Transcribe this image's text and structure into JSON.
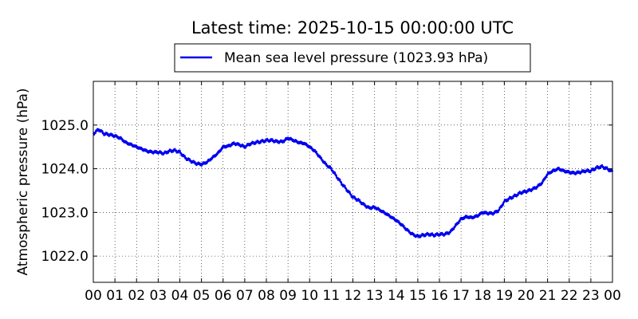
{
  "chart_data": {
    "type": "line",
    "title": "Latest time: 2025-10-15 00:00:00 UTC",
    "xlabel": "",
    "ylabel": "Atmospheric pressure (hPa)",
    "xlim": [
      0,
      24
    ],
    "ylim": [
      1021.4,
      1026.0
    ],
    "x_ticks": [
      0,
      1,
      2,
      3,
      4,
      5,
      6,
      7,
      8,
      9,
      10,
      11,
      12,
      13,
      14,
      15,
      16,
      17,
      18,
      19,
      20,
      21,
      22,
      23,
      24
    ],
    "x_tick_labels": [
      "00",
      "01",
      "02",
      "03",
      "04",
      "05",
      "06",
      "07",
      "08",
      "09",
      "10",
      "11",
      "12",
      "13",
      "14",
      "15",
      "16",
      "17",
      "18",
      "19",
      "20",
      "21",
      "22",
      "23",
      "00"
    ],
    "y_ticks": [
      1022.0,
      1023.0,
      1024.0,
      1025.0
    ],
    "y_tick_labels": [
      "1022.0",
      "1023.0",
      "1024.0",
      "1025.0"
    ],
    "grid": true,
    "legend_position": "top-center",
    "series": [
      {
        "name": "Mean sea level pressure (1023.93 hPa)",
        "color": "#0000ee",
        "x": [
          0,
          0.25,
          0.5,
          0.75,
          1,
          1.25,
          1.5,
          1.75,
          2,
          2.25,
          2.5,
          2.75,
          3,
          3.25,
          3.5,
          3.75,
          4,
          4.25,
          4.5,
          4.75,
          5,
          5.25,
          5.5,
          5.75,
          6,
          6.25,
          6.5,
          6.75,
          7,
          7.25,
          7.5,
          7.75,
          8,
          8.25,
          8.5,
          8.75,
          9,
          9.25,
          9.5,
          9.75,
          10,
          10.25,
          10.5,
          10.75,
          11,
          11.25,
          11.5,
          11.75,
          12,
          12.25,
          12.5,
          12.75,
          13,
          13.25,
          13.5,
          13.75,
          14,
          14.25,
          14.5,
          14.75,
          15,
          15.25,
          15.5,
          15.75,
          16,
          16.25,
          16.5,
          16.75,
          17,
          17.25,
          17.5,
          17.75,
          18,
          18.25,
          18.5,
          18.75,
          19,
          19.25,
          19.5,
          19.75,
          20,
          20.25,
          20.5,
          20.75,
          21,
          21.25,
          21.5,
          21.75,
          22,
          22.25,
          22.5,
          22.75,
          23,
          23.25,
          23.5,
          23.75,
          24
        ],
        "y": [
          1024.8,
          1024.9,
          1024.8,
          1024.78,
          1024.75,
          1024.7,
          1024.6,
          1024.55,
          1024.5,
          1024.45,
          1024.4,
          1024.38,
          1024.38,
          1024.35,
          1024.4,
          1024.42,
          1024.38,
          1024.25,
          1024.18,
          1024.12,
          1024.1,
          1024.15,
          1024.25,
          1024.35,
          1024.5,
          1024.52,
          1024.58,
          1024.55,
          1024.5,
          1024.57,
          1024.6,
          1024.62,
          1024.65,
          1024.65,
          1024.62,
          1024.62,
          1024.7,
          1024.65,
          1024.6,
          1024.58,
          1024.5,
          1024.4,
          1024.25,
          1024.1,
          1024.0,
          1023.82,
          1023.65,
          1023.5,
          1023.35,
          1023.28,
          1023.18,
          1023.1,
          1023.12,
          1023.05,
          1022.98,
          1022.9,
          1022.82,
          1022.72,
          1022.6,
          1022.5,
          1022.45,
          1022.48,
          1022.5,
          1022.48,
          1022.5,
          1022.5,
          1022.55,
          1022.7,
          1022.85,
          1022.9,
          1022.88,
          1022.92,
          1023.0,
          1022.98,
          1022.98,
          1023.05,
          1023.25,
          1023.32,
          1023.38,
          1023.45,
          1023.48,
          1023.52,
          1023.58,
          1023.68,
          1023.88,
          1023.95,
          1024.0,
          1023.95,
          1023.92,
          1023.9,
          1023.92,
          1023.95,
          1023.95,
          1024.02,
          1024.05,
          1024.0,
          1023.93
        ]
      }
    ]
  }
}
